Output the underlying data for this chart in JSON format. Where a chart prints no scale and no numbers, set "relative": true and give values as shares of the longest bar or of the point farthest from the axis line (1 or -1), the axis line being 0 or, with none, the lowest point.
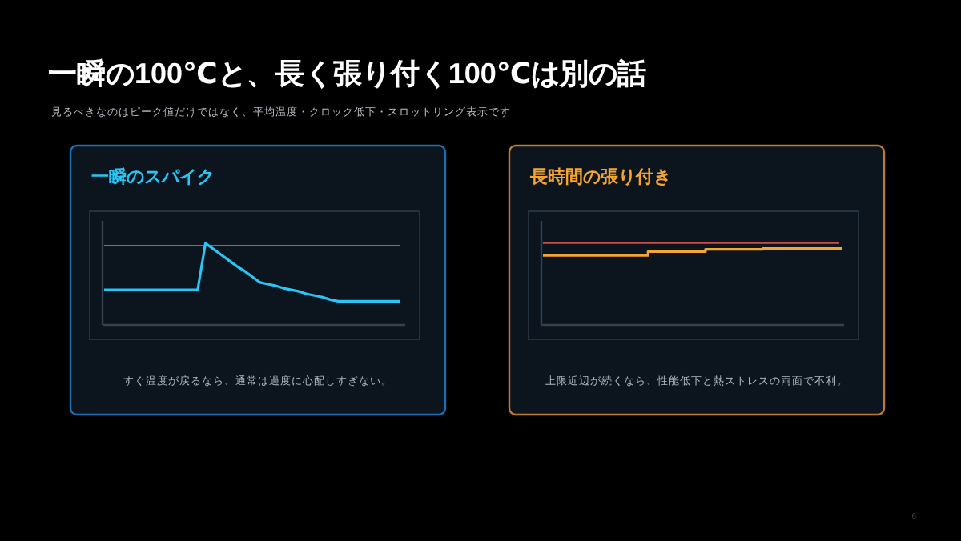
{
  "chart_data": [
    {
      "type": "other",
      "title": "一瞬の100℃と、長く張り付く100℃は別の話",
      "subtitle": "見るべきなのはピーク値だけではなく、平均温度・クロック低下・スロットリング表示です",
      "annotations": [
        "6"
      ]
    },
    {
      "type": "line",
      "title": "一瞬のスパイク",
      "relative": true,
      "categories": [
        null,
        null,
        null,
        null,
        null,
        null,
        null,
        null,
        null,
        null,
        null,
        null,
        null,
        null,
        null,
        null,
        null,
        null,
        null,
        null,
        null,
        null,
        null,
        null,
        null,
        null,
        null,
        null,
        null,
        null,
        null,
        null,
        null,
        null,
        null,
        null,
        null,
        null,
        null
      ],
      "series": [
        {
          "color": "#29c5f6",
          "values": [
            0.43,
            0.43,
            0.43,
            0.43,
            0.43,
            0.43,
            0.43,
            0.43,
            0.43,
            0.43,
            0.43,
            0.43,
            0.43,
            1,
            0.93,
            0.86,
            0.79,
            0.72,
            0.66,
            0.59,
            0.52,
            0.5,
            0.48,
            0.45,
            0.43,
            0.41,
            0.38,
            0.36,
            0.34,
            0.31,
            0.29,
            0.29,
            0.29,
            0.29,
            0.29,
            0.29,
            0.29,
            0.29,
            0.29
          ]
        }
      ],
      "ref_lines": [
        {
          "axis": "y",
          "value": 0.97,
          "color": "#c8504a"
        }
      ],
      "annotations": [
        "すぐ温度が戻るなら、通常は過度に心配しすぎない。"
      ],
      "grid": false
    },
    {
      "type": "step",
      "title": "長時間の張り付き",
      "relative": true,
      "categories": [
        null,
        null,
        null,
        null,
        null,
        null,
        null,
        null,
        null,
        null,
        null,
        null,
        null,
        null,
        null,
        null,
        null,
        null,
        null,
        null,
        null,
        null,
        null,
        null,
        null,
        null,
        null,
        null,
        null,
        null,
        null,
        null
      ],
      "series": [
        {
          "color": "#f7a531",
          "values": [
            0.91,
            0.91,
            0.91,
            0.91,
            0.91,
            0.91,
            0.91,
            0.91,
            0.91,
            0.91,
            0.91,
            0.96,
            0.96,
            0.96,
            0.96,
            0.96,
            0.96,
            0.99,
            0.99,
            0.99,
            0.99,
            0.99,
            0.99,
            1,
            1,
            1,
            1,
            1,
            1,
            1,
            1,
            1
          ]
        }
      ],
      "ref_lines": [
        {
          "axis": "y",
          "value": 1.07,
          "color": "#c8504a"
        }
      ],
      "annotations": [
        "上限近辺が続くなら、性能低下と熱ストレスの両面で不利。"
      ],
      "grid": false
    }
  ]
}
